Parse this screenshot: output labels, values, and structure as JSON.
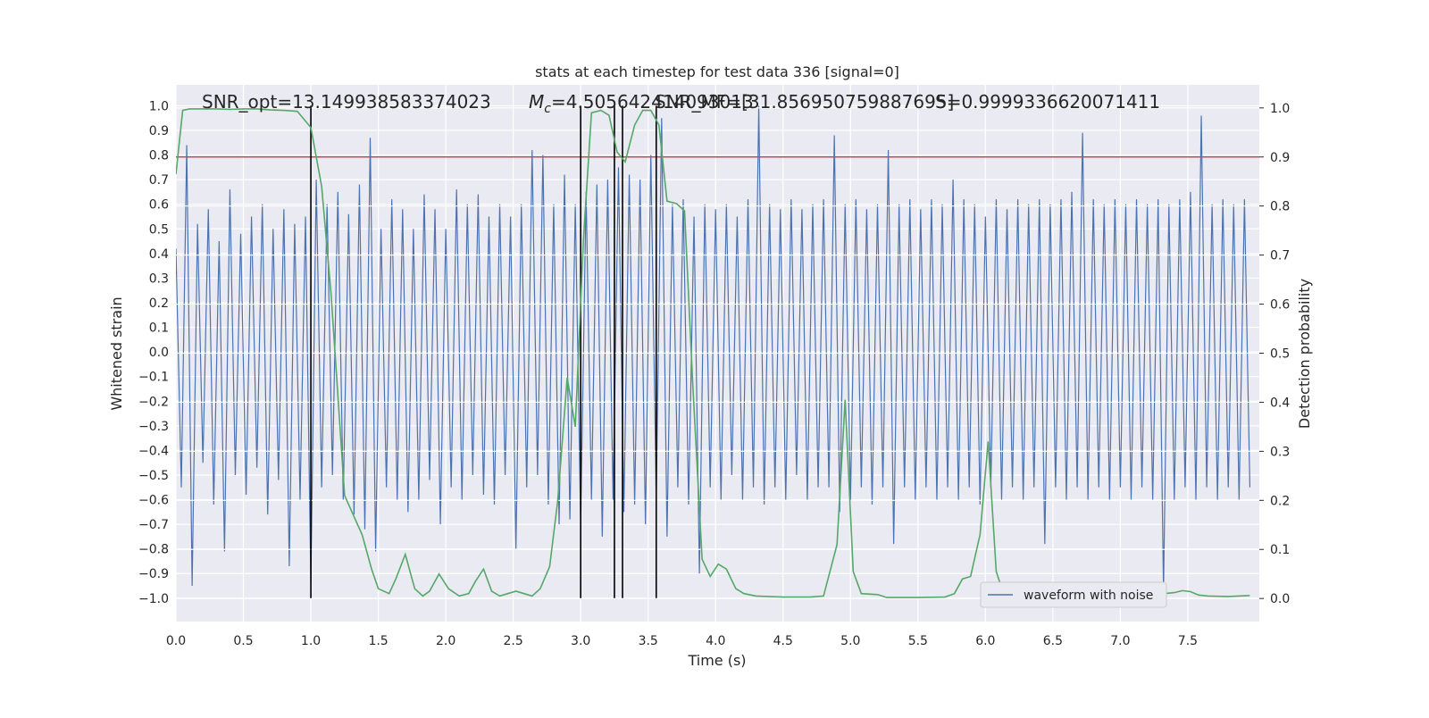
{
  "chart_data": {
    "type": "line",
    "title": "stats at each timestep for test data 336 [signal=0]",
    "xlabel": "Time (s)",
    "ylabel": "Whitened strain",
    "y2label": "Detection probability",
    "annotations": [
      {
        "text": "SNR_opt=13.149938583374023"
      },
      {
        "symbol": "M",
        "subscript": "c",
        "text": "=4.505642414093013"
      },
      {
        "text": "SNR_MF=[31.856950759887695]"
      },
      {
        "text": "S=0.9999336620071411"
      }
    ],
    "xlim": [
      0,
      8.03
    ],
    "ylim": [
      -1.095,
      1.085
    ],
    "y2lim": [
      -0.047,
      1.047
    ],
    "xticks": [
      {
        "value": 0,
        "label": "0.0"
      },
      {
        "value": 0.5,
        "label": "0.5"
      },
      {
        "value": 1,
        "label": "1.0"
      },
      {
        "value": 1.5,
        "label": "1.5"
      },
      {
        "value": 2,
        "label": "2.0"
      },
      {
        "value": 2.5,
        "label": "2.5"
      },
      {
        "value": 3,
        "label": "3.0"
      },
      {
        "value": 3.5,
        "label": "3.5"
      },
      {
        "value": 4,
        "label": "4.0"
      },
      {
        "value": 4.5,
        "label": "4.5"
      },
      {
        "value": 5,
        "label": "5.0"
      },
      {
        "value": 5.5,
        "label": "5.5"
      },
      {
        "value": 6,
        "label": "6.0"
      },
      {
        "value": 6.5,
        "label": "6.5"
      },
      {
        "value": 7,
        "label": "7.0"
      },
      {
        "value": 7.5,
        "label": "7.5"
      }
    ],
    "yticks": [
      {
        "value": -1,
        "label": "−1.0"
      },
      {
        "value": -0.9,
        "label": "−0.9"
      },
      {
        "value": -0.8,
        "label": "−0.8"
      },
      {
        "value": -0.7,
        "label": "−0.7"
      },
      {
        "value": -0.6,
        "label": "−0.6"
      },
      {
        "value": -0.5,
        "label": "−0.5"
      },
      {
        "value": -0.4,
        "label": "−0.4"
      },
      {
        "value": -0.3,
        "label": "−0.3"
      },
      {
        "value": -0.2,
        "label": "−0.2"
      },
      {
        "value": -0.1,
        "label": "−0.1"
      },
      {
        "value": 0,
        "label": "0.0"
      },
      {
        "value": 0.1,
        "label": "0.1"
      },
      {
        "value": 0.2,
        "label": "0.2"
      },
      {
        "value": 0.3,
        "label": "0.3"
      },
      {
        "value": 0.4,
        "label": "0.4"
      },
      {
        "value": 0.5,
        "label": "0.5"
      },
      {
        "value": 0.6,
        "label": "0.6"
      },
      {
        "value": 0.7,
        "label": "0.7"
      },
      {
        "value": 0.8,
        "label": "0.8"
      },
      {
        "value": 0.9,
        "label": "0.9"
      },
      {
        "value": 1,
        "label": "1.0"
      }
    ],
    "y2ticks": [
      {
        "value": 0,
        "label": "0.0"
      },
      {
        "value": 0.1,
        "label": "0.1"
      },
      {
        "value": 0.2,
        "label": "0.2"
      },
      {
        "value": 0.3,
        "label": "0.3"
      },
      {
        "value": 0.4,
        "label": "0.4"
      },
      {
        "value": 0.5,
        "label": "0.5"
      },
      {
        "value": 0.6,
        "label": "0.6"
      },
      {
        "value": 0.7,
        "label": "0.7"
      },
      {
        "value": 0.8,
        "label": "0.8"
      },
      {
        "value": 0.9,
        "label": "0.9"
      },
      {
        "value": 1,
        "label": "1.0"
      }
    ],
    "grid": true,
    "legend": "lower right",
    "series": [
      {
        "name": "waveform with noise",
        "color": "#4c72b0",
        "x": [
          0,
          0.04,
          0.08,
          0.12,
          0.16,
          0.2,
          0.24,
          0.28,
          0.32,
          0.36,
          0.4,
          0.44,
          0.48,
          0.52,
          0.56,
          0.6,
          0.64,
          0.68,
          0.72,
          0.76,
          0.8,
          0.84,
          0.88,
          0.92,
          0.96,
          1,
          1.04,
          1.08,
          1.12,
          1.16,
          1.2,
          1.24,
          1.28,
          1.32,
          1.36,
          1.4,
          1.44,
          1.48,
          1.52,
          1.56,
          1.6,
          1.64,
          1.68,
          1.72,
          1.76,
          1.8,
          1.84,
          1.88,
          1.92,
          1.96,
          2,
          2.04,
          2.08,
          2.12,
          2.16,
          2.2,
          2.24,
          2.28,
          2.32,
          2.36,
          2.4,
          2.44,
          2.48,
          2.52,
          2.56,
          2.6,
          2.64,
          2.68,
          2.72,
          2.76,
          2.8,
          2.84,
          2.88,
          2.92,
          2.96,
          3,
          3.04,
          3.08,
          3.12,
          3.16,
          3.2,
          3.24,
          3.28,
          3.32,
          3.36,
          3.4,
          3.44,
          3.48,
          3.52,
          3.56,
          3.6,
          3.64,
          3.68,
          3.72,
          3.76,
          3.8,
          3.84,
          3.88,
          3.92,
          3.96,
          4,
          4.04,
          4.08,
          4.12,
          4.16,
          4.2,
          4.24,
          4.28,
          4.32,
          4.36,
          4.4,
          4.44,
          4.48,
          4.52,
          4.56,
          4.6,
          4.64,
          4.68,
          4.72,
          4.76,
          4.8,
          4.84,
          4.88,
          4.92,
          4.96,
          5,
          5.04,
          5.08,
          5.12,
          5.16,
          5.2,
          5.24,
          5.28,
          5.32,
          5.36,
          5.4,
          5.44,
          5.48,
          5.52,
          5.56,
          5.6,
          5.64,
          5.68,
          5.72,
          5.76,
          5.8,
          5.84,
          5.88,
          5.92,
          5.96,
          6,
          6.04,
          6.08,
          6.12,
          6.16,
          6.2,
          6.24,
          6.28,
          6.32,
          6.36,
          6.4,
          6.44,
          6.48,
          6.52,
          6.56,
          6.6,
          6.64,
          6.68,
          6.72,
          6.76,
          6.8,
          6.84,
          6.88,
          6.92,
          6.96,
          7,
          7.04,
          7.08,
          7.12,
          7.16,
          7.2,
          7.24,
          7.28,
          7.32,
          7.36,
          7.4,
          7.44,
          7.48,
          7.52,
          7.56,
          7.6,
          7.64,
          7.68,
          7.72,
          7.76,
          7.8,
          7.84,
          7.88,
          7.92,
          7.96
        ],
        "values": [
          0.42,
          -0.55,
          0.84,
          -0.95,
          0.52,
          -0.45,
          0.58,
          -0.62,
          0.45,
          -0.81,
          0.66,
          -0.5,
          0.48,
          -0.58,
          0.55,
          -0.47,
          0.6,
          -0.66,
          0.5,
          -0.52,
          0.58,
          -0.87,
          0.52,
          -0.6,
          0.55,
          -0.94,
          0.7,
          -0.55,
          0.6,
          -0.5,
          0.65,
          -0.6,
          0.56,
          -0.66,
          0.68,
          -0.72,
          0.87,
          -0.81,
          0.5,
          -0.55,
          0.62,
          -0.6,
          0.58,
          -0.65,
          0.5,
          -0.6,
          0.64,
          -0.52,
          0.58,
          -0.7,
          0.5,
          -0.55,
          0.66,
          -0.6,
          0.6,
          -0.5,
          0.64,
          -0.58,
          0.55,
          -0.62,
          0.6,
          -0.5,
          0.55,
          -0.8,
          0.6,
          -0.55,
          0.82,
          -0.5,
          0.8,
          -0.62,
          0.6,
          -0.7,
          0.72,
          -0.68,
          0.6,
          -0.7,
          0.65,
          -0.6,
          0.68,
          -0.75,
          0.7,
          -0.6,
          0.75,
          -0.65,
          0.72,
          -0.62,
          0.7,
          -0.7,
          0.8,
          -0.6,
          0.95,
          -0.75,
          0.6,
          -0.55,
          0.62,
          -0.62,
          0.55,
          -0.9,
          0.6,
          -0.55,
          0.58,
          -0.6,
          0.6,
          -0.5,
          0.55,
          -0.6,
          0.62,
          -0.55,
          1.0,
          -0.62,
          0.6,
          -0.55,
          0.58,
          -0.6,
          0.62,
          -0.5,
          0.58,
          -0.6,
          0.6,
          -0.55,
          0.62,
          -0.55,
          0.88,
          -0.65,
          0.6,
          -0.6,
          0.62,
          -0.55,
          0.58,
          -0.62,
          0.6,
          -0.55,
          0.82,
          -0.78,
          0.6,
          -0.55,
          0.62,
          -0.6,
          0.58,
          -0.55,
          0.62,
          -0.6,
          0.6,
          -0.55,
          0.7,
          -0.6,
          0.62,
          -0.55,
          0.6,
          -0.62,
          0.55,
          -0.55,
          0.62,
          -0.6,
          0.58,
          -0.55,
          0.62,
          -0.6,
          0.6,
          -0.55,
          0.62,
          -0.78,
          0.6,
          -0.55,
          0.62,
          -0.6,
          0.65,
          -0.55,
          0.89,
          -0.6,
          0.62,
          -0.55,
          0.6,
          -0.6,
          0.62,
          -0.55,
          0.6,
          -0.6,
          0.62,
          -0.55,
          0.6,
          -0.6,
          0.62,
          -0.97,
          0.6,
          -0.6,
          0.62,
          -0.55,
          0.65,
          -0.6,
          0.96,
          -0.55,
          0.6,
          -0.6,
          0.62,
          -0.55,
          0.6,
          -0.6,
          0.62,
          -0.55
        ]
      },
      {
        "color": "#55a868",
        "axis": "y2",
        "x": [
          0,
          0.05,
          0.1,
          0.2,
          0.3,
          0.4,
          0.5,
          0.6,
          0.7,
          0.8,
          0.9,
          1.0,
          1.08,
          1.15,
          1.25,
          1.38,
          1.45,
          1.5,
          1.58,
          1.63,
          1.7,
          1.77,
          1.83,
          1.88,
          1.95,
          2.02,
          2.1,
          2.17,
          2.22,
          2.28,
          2.34,
          2.4,
          2.46,
          2.52,
          2.58,
          2.64,
          2.7,
          2.77,
          2.83,
          2.9,
          2.96,
          3.02,
          3.08,
          3.15,
          3.21,
          3.27,
          3.33,
          3.4,
          3.46,
          3.52,
          3.58,
          3.64,
          3.71,
          3.77,
          3.83,
          3.9,
          3.96,
          4.02,
          4.08,
          4.15,
          4.21,
          4.3,
          4.5,
          4.7,
          4.8,
          4.9,
          4.96,
          5.02,
          5.08,
          5.2,
          5.27,
          5.5,
          5.7,
          5.77,
          5.83,
          5.89,
          5.96,
          6.02,
          6.08,
          6.14,
          6.3,
          6.6,
          7.0,
          7.2,
          7.33,
          7.4,
          7.46,
          7.52,
          7.58,
          7.65,
          7.8,
          7.96
        ],
        "values": [
          0.865,
          0.995,
          0.998,
          0.998,
          0.998,
          0.997,
          0.998,
          0.998,
          0.996,
          0.995,
          0.993,
          0.96,
          0.84,
          0.62,
          0.21,
          0.13,
          0.06,
          0.02,
          0.01,
          0.04,
          0.09,
          0.02,
          0.005,
          0.015,
          0.05,
          0.02,
          0.005,
          0.01,
          0.035,
          0.06,
          0.015,
          0.005,
          0.01,
          0.015,
          0.01,
          0.005,
          0.02,
          0.065,
          0.2,
          0.45,
          0.35,
          0.73,
          0.99,
          0.995,
          0.985,
          0.91,
          0.89,
          0.965,
          0.995,
          0.995,
          0.965,
          0.81,
          0.805,
          0.79,
          0.44,
          0.08,
          0.045,
          0.07,
          0.06,
          0.02,
          0.01,
          0.005,
          0.003,
          0.003,
          0.005,
          0.11,
          0.405,
          0.055,
          0.01,
          0.008,
          0.002,
          0.002,
          0.003,
          0.01,
          0.04,
          0.045,
          0.13,
          0.32,
          0.055,
          0.005,
          0.004,
          0.003,
          0.004,
          0.005,
          0.01,
          0.012,
          0.016,
          0.014,
          0.007,
          0.005,
          0.004,
          0.006
        ]
      }
    ],
    "hline": {
      "value": 0.9,
      "axis": "y2",
      "color": "#c44e52"
    },
    "vlines": {
      "x": [
        1.0,
        3.0,
        3.25,
        3.31,
        3.56
      ],
      "ymin": -1,
      "ymax": 1,
      "color": "#000000"
    }
  }
}
